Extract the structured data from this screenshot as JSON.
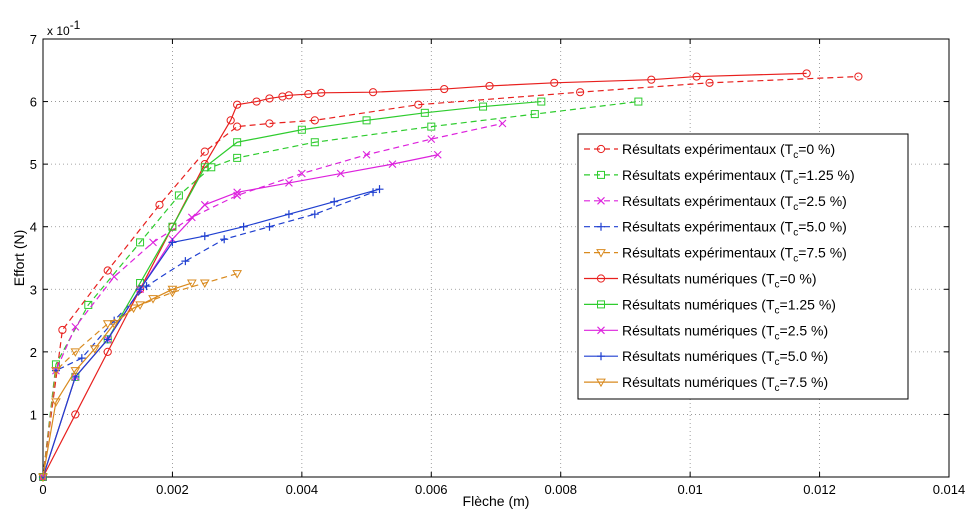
{
  "chart_data": {
    "type": "line",
    "xlabel": "Flèche (m)",
    "ylabel": "Effort (N)",
    "y_exponent_label": "x 10",
    "y_exponent_power": "-1",
    "xlim": [
      0,
      0.014
    ],
    "ylim": [
      0,
      7
    ],
    "x_ticks": [
      0,
      0.002,
      0.004,
      0.006,
      0.008,
      0.01,
      0.012,
      0.014
    ],
    "x_tick_labels": [
      "0",
      "0.002",
      "0.004",
      "0.006",
      "0.008",
      "0.01",
      "0.012",
      "0.014"
    ],
    "y_ticks": [
      0,
      1,
      2,
      3,
      4,
      5,
      6,
      7
    ],
    "y_tick_labels": [
      "0",
      "1",
      "2",
      "3",
      "4",
      "5",
      "6",
      "7"
    ],
    "grid": true,
    "legend_position": "right",
    "series": [
      {
        "name_prefix": "Résultats expérimentaux (T",
        "name_sub": "c",
        "name_suffix": "=0 %)",
        "color": "#e8201e",
        "dash": true,
        "marker": "circle",
        "x": [
          0,
          0.0003,
          0.001,
          0.0018,
          0.0025,
          0.003,
          0.0035,
          0.0042,
          0.0058,
          0.0083,
          0.0103,
          0.0126
        ],
        "y": [
          0,
          2.35,
          3.3,
          4.35,
          5.2,
          5.6,
          5.65,
          5.7,
          5.95,
          6.15,
          6.3,
          6.4
        ]
      },
      {
        "name_prefix": "Résultats expérimentaux (T",
        "name_sub": "c",
        "name_suffix": "=1.25 %)",
        "color": "#2ecc2e",
        "dash": true,
        "marker": "square",
        "x": [
          0,
          0.0002,
          0.0007,
          0.0015,
          0.0021,
          0.0026,
          0.003,
          0.0042,
          0.006,
          0.0076,
          0.0092
        ],
        "y": [
          0,
          1.8,
          2.75,
          3.75,
          4.5,
          4.95,
          5.1,
          5.35,
          5.6,
          5.8,
          6.0
        ]
      },
      {
        "name_prefix": "Résultats expérimentaux (T",
        "name_sub": "c",
        "name_suffix": "=2.5 %)",
        "color": "#dd22dd",
        "dash": true,
        "marker": "cross",
        "x": [
          0,
          0.0002,
          0.0005,
          0.0011,
          0.0017,
          0.0023,
          0.003,
          0.004,
          0.005,
          0.006,
          0.0071
        ],
        "y": [
          0,
          1.7,
          2.4,
          3.2,
          3.75,
          4.15,
          4.5,
          4.85,
          5.15,
          5.4,
          5.65
        ]
      },
      {
        "name_prefix": "Résultats expérimentaux (T",
        "name_sub": "c",
        "name_suffix": "=5.0 %)",
        "color": "#1f3fd0",
        "dash": true,
        "marker": "plus",
        "x": [
          0,
          0.0002,
          0.0006,
          0.0011,
          0.0016,
          0.0022,
          0.0028,
          0.0035,
          0.0042,
          0.0051
        ],
        "y": [
          0,
          1.7,
          1.9,
          2.5,
          3.05,
          3.45,
          3.8,
          4.0,
          4.2,
          4.55
        ]
      },
      {
        "name_prefix": "Résultats expérimentaux (T",
        "name_sub": "c",
        "name_suffix": "=7.5 %)",
        "color": "#d98a1e",
        "dash": true,
        "marker": "triangle-down",
        "x": [
          0,
          0.0002,
          0.0005,
          0.001,
          0.0015,
          0.002,
          0.0025,
          0.003
        ],
        "y": [
          0,
          1.7,
          2.0,
          2.45,
          2.75,
          2.95,
          3.1,
          3.25
        ]
      },
      {
        "name_prefix": "Résultats numériques (T",
        "name_sub": "c",
        "name_suffix": "=0 %)",
        "color": "#e8201e",
        "dash": false,
        "marker": "circle",
        "x": [
          0,
          0.0005,
          0.001,
          0.0015,
          0.002,
          0.0025,
          0.0029,
          0.003,
          0.0033,
          0.0035,
          0.0037,
          0.0038,
          0.0041,
          0.0043,
          0.0051,
          0.0062,
          0.0069,
          0.0079,
          0.0094,
          0.0101,
          0.0118
        ],
        "y": [
          0,
          1.0,
          2.0,
          3.0,
          4.0,
          5.0,
          5.7,
          5.95,
          6.0,
          6.05,
          6.08,
          6.1,
          6.12,
          6.14,
          6.15,
          6.2,
          6.25,
          6.3,
          6.35,
          6.4,
          6.45
        ]
      },
      {
        "name_prefix": "Résultats numériques (T",
        "name_sub": "c",
        "name_suffix": "=1.25 %)",
        "color": "#2ecc2e",
        "dash": false,
        "marker": "square",
        "x": [
          0,
          0.0005,
          0.001,
          0.0015,
          0.002,
          0.0025,
          0.003,
          0.004,
          0.005,
          0.0059,
          0.0068,
          0.0077
        ],
        "y": [
          0,
          1.6,
          2.2,
          3.1,
          4.0,
          4.95,
          5.35,
          5.55,
          5.7,
          5.82,
          5.92,
          6.0
        ]
      },
      {
        "name_prefix": "Résultats numériques (T",
        "name_sub": "c",
        "name_suffix": "=2.5 %)",
        "color": "#dd22dd",
        "dash": false,
        "marker": "cross",
        "x": [
          0,
          0.0005,
          0.001,
          0.0015,
          0.002,
          0.0025,
          0.003,
          0.0038,
          0.0046,
          0.0054,
          0.0061
        ],
        "y": [
          0,
          1.6,
          2.2,
          3.0,
          3.8,
          4.35,
          4.55,
          4.7,
          4.85,
          5.0,
          5.15
        ]
      },
      {
        "name_prefix": "Résultats numériques (T",
        "name_sub": "c",
        "name_suffix": "=5.0 %)",
        "color": "#1f3fd0",
        "dash": false,
        "marker": "plus",
        "x": [
          0,
          0.0005,
          0.001,
          0.0015,
          0.002,
          0.0025,
          0.0031,
          0.0038,
          0.0045,
          0.0052
        ],
        "y": [
          0,
          1.6,
          2.2,
          3.0,
          3.75,
          3.85,
          4.0,
          4.2,
          4.4,
          4.6
        ]
      },
      {
        "name_prefix": "Résultats numériques (T",
        "name_sub": "c",
        "name_suffix": "=7.5 %)",
        "color": "#d98a1e",
        "dash": false,
        "marker": "triangle-down",
        "x": [
          0,
          0.0002,
          0.0005,
          0.0008,
          0.0011,
          0.0014,
          0.0017,
          0.002,
          0.0023
        ],
        "y": [
          0,
          1.2,
          1.7,
          2.05,
          2.45,
          2.7,
          2.85,
          3.0,
          3.1
        ]
      }
    ]
  }
}
